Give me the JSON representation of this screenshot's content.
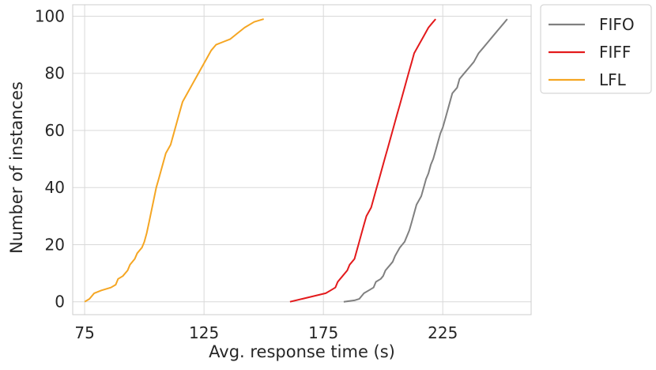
{
  "chart_data": {
    "type": "line",
    "xlabel": "Avg. response time (s)",
    "ylabel": "Number of instances",
    "xlim": [
      70,
      262
    ],
    "ylim": [
      -4.5,
      104
    ],
    "xticks": [
      75,
      125,
      175,
      225
    ],
    "yticks": [
      0,
      20,
      40,
      60,
      80,
      100
    ],
    "grid": true,
    "legend_position": "outside-top-right",
    "series": [
      {
        "name": "FIFO",
        "color": "#808080",
        "points": [
          [
            183.5,
            0
          ],
          [
            188,
            0.5
          ],
          [
            190,
            1
          ],
          [
            192,
            3
          ],
          [
            194,
            4
          ],
          [
            196,
            5
          ],
          [
            197,
            7
          ],
          [
            199,
            8
          ],
          [
            200,
            9
          ],
          [
            201,
            11
          ],
          [
            203,
            13
          ],
          [
            204,
            14
          ],
          [
            205,
            16
          ],
          [
            207,
            19
          ],
          [
            209,
            21
          ],
          [
            210,
            23
          ],
          [
            211,
            25
          ],
          [
            212,
            28
          ],
          [
            213,
            31
          ],
          [
            214,
            34
          ],
          [
            216,
            37
          ],
          [
            217,
            40
          ],
          [
            218,
            43
          ],
          [
            219,
            45
          ],
          [
            220,
            48
          ],
          [
            221,
            50
          ],
          [
            222,
            53
          ],
          [
            223,
            56
          ],
          [
            224,
            59
          ],
          [
            225,
            61
          ],
          [
            226,
            64
          ],
          [
            227,
            67
          ],
          [
            228,
            70
          ],
          [
            229,
            73
          ],
          [
            231,
            75
          ],
          [
            232,
            78
          ],
          [
            234,
            80
          ],
          [
            236,
            82
          ],
          [
            238,
            84
          ],
          [
            240,
            87
          ],
          [
            242,
            89
          ],
          [
            244,
            91
          ],
          [
            246,
            93
          ],
          [
            248,
            95
          ],
          [
            250,
            97
          ],
          [
            252,
            99
          ]
        ]
      },
      {
        "name": "FIFF",
        "color": "#e31a1c",
        "points": [
          [
            161,
            0
          ],
          [
            166,
            1
          ],
          [
            171,
            2
          ],
          [
            176,
            3
          ],
          [
            178,
            4
          ],
          [
            180,
            5
          ],
          [
            181,
            7
          ],
          [
            183,
            9
          ],
          [
            185,
            11
          ],
          [
            186,
            13
          ],
          [
            188,
            15
          ],
          [
            189,
            18
          ],
          [
            190,
            21
          ],
          [
            191,
            24
          ],
          [
            192,
            27
          ],
          [
            193,
            30
          ],
          [
            195,
            33
          ],
          [
            196,
            36
          ],
          [
            197,
            39
          ],
          [
            198,
            42
          ],
          [
            199,
            45
          ],
          [
            200,
            48
          ],
          [
            201,
            51
          ],
          [
            202,
            54
          ],
          [
            203,
            57
          ],
          [
            204,
            60
          ],
          [
            205,
            63
          ],
          [
            206,
            66
          ],
          [
            207,
            69
          ],
          [
            208,
            72
          ],
          [
            209,
            75
          ],
          [
            210,
            78
          ],
          [
            211,
            81
          ],
          [
            212,
            84
          ],
          [
            213,
            87
          ],
          [
            215,
            90
          ],
          [
            217,
            93
          ],
          [
            219,
            96
          ],
          [
            221,
            98
          ],
          [
            222,
            99
          ]
        ]
      },
      {
        "name": "LFL",
        "color": "#f5a623",
        "points": [
          [
            75,
            0
          ],
          [
            77,
            1
          ],
          [
            79,
            3
          ],
          [
            82,
            4
          ],
          [
            86,
            5
          ],
          [
            88,
            6
          ],
          [
            89,
            8
          ],
          [
            91,
            9
          ],
          [
            93,
            11
          ],
          [
            94,
            13
          ],
          [
            96,
            15
          ],
          [
            97,
            17
          ],
          [
            99,
            19
          ],
          [
            100,
            21
          ],
          [
            101,
            24
          ],
          [
            102,
            28
          ],
          [
            103,
            32
          ],
          [
            104,
            36
          ],
          [
            105,
            40
          ],
          [
            106,
            43
          ],
          [
            107,
            46
          ],
          [
            108,
            49
          ],
          [
            109,
            52
          ],
          [
            111,
            55
          ],
          [
            112,
            58
          ],
          [
            113,
            61
          ],
          [
            114,
            64
          ],
          [
            115,
            67
          ],
          [
            116,
            70
          ],
          [
            118,
            73
          ],
          [
            120,
            76
          ],
          [
            122,
            79
          ],
          [
            124,
            82
          ],
          [
            126,
            85
          ],
          [
            128,
            88
          ],
          [
            130,
            90
          ],
          [
            133,
            91
          ],
          [
            136,
            92
          ],
          [
            139,
            94
          ],
          [
            142,
            96
          ],
          [
            146,
            98
          ],
          [
            150,
            99
          ]
        ]
      }
    ]
  }
}
